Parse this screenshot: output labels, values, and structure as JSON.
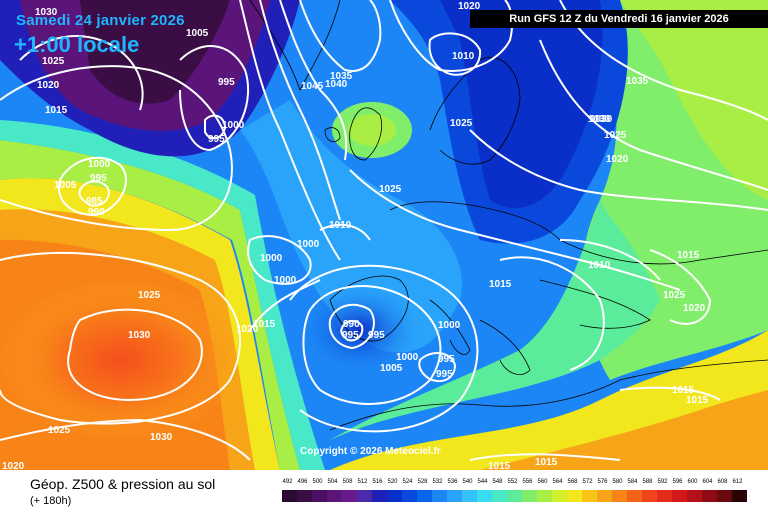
{
  "header": {
    "date_label": "Samedi 24 janvier 2026",
    "time_label": "+1:00 locale",
    "run_label": "Run GFS 12 Z du Vendredi 16 janvier 2026"
  },
  "map": {
    "copyright": "Copyright © 2026 Meteociel.fr",
    "isobar_labels": [
      "1030",
      "1005",
      "1025",
      "995",
      "1000",
      "995",
      "1020",
      "1015",
      "1000",
      "995",
      "1005",
      "985",
      "990",
      "1045",
      "1035",
      "1040",
      "1020",
      "1010",
      "1030",
      "1025",
      "1035",
      "1030",
      "1025",
      "1020",
      "1025",
      "1010",
      "1000",
      "1000",
      "1000",
      "1010",
      "1015",
      "1025",
      "1030",
      "1020",
      "1015",
      "990",
      "995",
      "995",
      "1000",
      "1005",
      "1000",
      "995",
      "995",
      "1015",
      "1025",
      "1020",
      "1015",
      "1015",
      "1030",
      "1025",
      "1015",
      "1015",
      "1020"
    ]
  },
  "footer": {
    "product_title": "Géop. Z500 & pression au sol",
    "product_sub": "(+ 180h)"
  },
  "legend": {
    "levels": [
      "492",
      "496",
      "500",
      "504",
      "508",
      "512",
      "516",
      "520",
      "524",
      "528",
      "532",
      "536",
      "540",
      "544",
      "548",
      "552",
      "556",
      "560",
      "564",
      "568",
      "572",
      "576",
      "580",
      "584",
      "588",
      "592",
      "596",
      "600",
      "604",
      "608",
      "612"
    ],
    "colors": [
      "#2a0a2e",
      "#3b0d45",
      "#4a1060",
      "#5a147a",
      "#6a1a8c",
      "#4a2aa8",
      "#2020b8",
      "#0a2ec8",
      "#0a48dc",
      "#0a64ec",
      "#1c86f6",
      "#2aa4fa",
      "#34c2fa",
      "#3adcf0",
      "#48e8c8",
      "#5aec9a",
      "#80ee6a",
      "#a8ee44",
      "#d0ee2a",
      "#f2e61c",
      "#f8c418",
      "#f8a418",
      "#f88418",
      "#f46418",
      "#ee4418",
      "#e42a18",
      "#d21818",
      "#b41018",
      "#900c14",
      "#6a0810",
      "#2a0404"
    ]
  }
}
